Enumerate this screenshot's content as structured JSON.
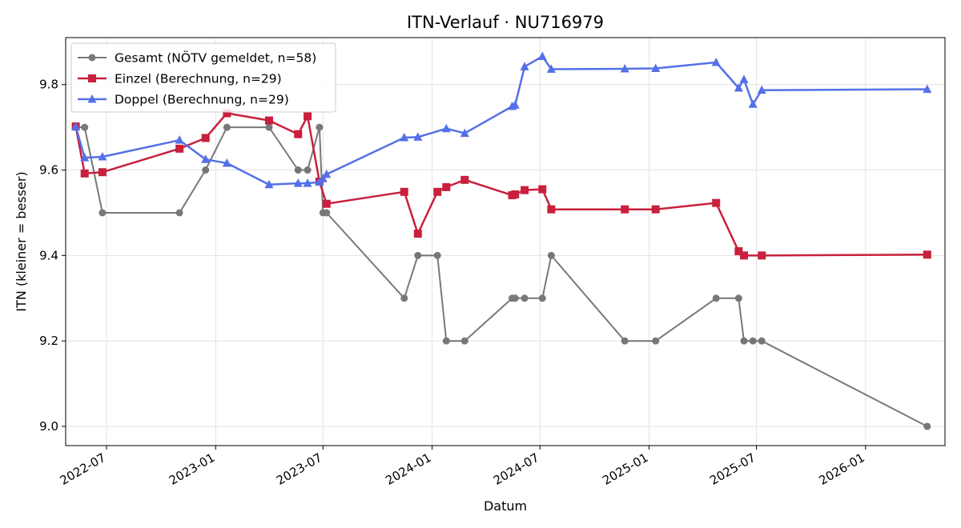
{
  "chart_data": {
    "type": "line",
    "title": "ITN-Verlauf · NU716979",
    "xlabel": "Datum",
    "ylabel": "ITN  (kleiner = besser)",
    "x_ticks": [
      "2022-07",
      "2023-01",
      "2023-07",
      "2024-01",
      "2024-07",
      "2025-01",
      "2025-07",
      "2026-01"
    ],
    "y_ticks": [
      "9.0",
      "9.2",
      "9.4",
      "9.6",
      "9.8"
    ],
    "xlim": [
      "2022-04-23",
      "2026-05-15"
    ],
    "ylim": [
      8.955,
      9.91
    ],
    "grid": true,
    "legend_position": "top-left",
    "series": [
      {
        "name": "Gesamt (NÖTV gemeldet, n=58)",
        "color": "#404040",
        "marker": "circle",
        "points": [
          [
            "2022-05-10",
            9.7
          ],
          [
            "2022-05-25",
            9.7
          ],
          [
            "2022-06-24",
            9.5
          ],
          [
            "2022-11-01",
            9.5
          ],
          [
            "2022-12-15",
            9.6
          ],
          [
            "2023-01-20",
            9.7
          ],
          [
            "2023-04-01",
            9.7
          ],
          [
            "2023-05-20",
            9.6
          ],
          [
            "2023-06-05",
            9.6
          ],
          [
            "2023-06-25",
            9.7
          ],
          [
            "2023-07-01",
            9.5
          ],
          [
            "2023-07-07",
            9.5
          ],
          [
            "2023-11-15",
            9.3
          ],
          [
            "2023-12-08",
            9.4
          ],
          [
            "2024-01-10",
            9.4
          ],
          [
            "2024-01-25",
            9.2
          ],
          [
            "2024-02-25",
            9.2
          ],
          [
            "2024-05-15",
            9.3
          ],
          [
            "2024-05-20",
            9.3
          ],
          [
            "2024-06-05",
            9.3
          ],
          [
            "2024-07-05",
            9.3
          ],
          [
            "2024-07-20",
            9.4
          ],
          [
            "2024-11-21",
            9.2
          ],
          [
            "2025-01-12",
            9.2
          ],
          [
            "2025-04-24",
            9.3
          ],
          [
            "2025-06-01",
            9.3
          ],
          [
            "2025-06-10",
            9.2
          ],
          [
            "2025-06-25",
            9.2
          ],
          [
            "2025-07-10",
            9.2
          ],
          [
            "2026-04-15",
            9.0
          ]
        ]
      },
      {
        "name": "Einzel (Berechnung, n=29)",
        "color": "#c8203d",
        "marker": "square",
        "points": [
          [
            "2022-05-10",
            9.702
          ],
          [
            "2022-05-25",
            9.592
          ],
          [
            "2022-06-24",
            9.595
          ],
          [
            "2022-11-01",
            9.65
          ],
          [
            "2022-12-15",
            9.675
          ],
          [
            "2023-01-20",
            9.733
          ],
          [
            "2023-04-01",
            9.716
          ],
          [
            "2023-05-20",
            9.684
          ],
          [
            "2023-06-05",
            9.726
          ],
          [
            "2023-06-25",
            9.573
          ],
          [
            "2023-07-07",
            9.521
          ],
          [
            "2023-11-15",
            9.549
          ],
          [
            "2023-12-08",
            9.451
          ],
          [
            "2024-01-10",
            9.549
          ],
          [
            "2024-01-25",
            9.56
          ],
          [
            "2024-02-25",
            9.577
          ],
          [
            "2024-05-15",
            9.541
          ],
          [
            "2024-05-20",
            9.543
          ],
          [
            "2024-06-05",
            9.553
          ],
          [
            "2024-07-05",
            9.555
          ],
          [
            "2024-07-20",
            9.508
          ],
          [
            "2024-11-21",
            9.508
          ],
          [
            "2025-01-12",
            9.508
          ],
          [
            "2025-04-24",
            9.523
          ],
          [
            "2025-06-01",
            9.41
          ],
          [
            "2025-06-10",
            9.4
          ],
          [
            "2025-07-10",
            9.4
          ],
          [
            "2026-04-15",
            9.402
          ]
        ]
      },
      {
        "name": "Doppel (Berechnung, n=29)",
        "color": "#5470e8",
        "marker": "triangle",
        "points": [
          [
            "2022-05-10",
            9.702
          ],
          [
            "2022-05-25",
            9.629
          ],
          [
            "2022-06-24",
            9.631
          ],
          [
            "2022-11-01",
            9.67
          ],
          [
            "2022-12-15",
            9.625
          ],
          [
            "2023-01-20",
            9.616
          ],
          [
            "2023-04-01",
            9.566
          ],
          [
            "2023-05-20",
            9.569
          ],
          [
            "2023-06-05",
            9.569
          ],
          [
            "2023-06-25",
            9.572
          ],
          [
            "2023-07-01",
            9.58
          ],
          [
            "2023-07-07",
            9.59
          ],
          [
            "2023-11-15",
            9.676
          ],
          [
            "2023-12-08",
            9.677
          ],
          [
            "2024-01-25",
            9.697
          ],
          [
            "2024-02-25",
            9.686
          ],
          [
            "2024-05-15",
            9.749
          ],
          [
            "2024-05-20",
            9.752
          ],
          [
            "2024-06-05",
            9.842
          ],
          [
            "2024-07-05",
            9.866
          ],
          [
            "2024-07-20",
            9.836
          ],
          [
            "2024-11-21",
            9.837
          ],
          [
            "2025-01-12",
            9.838
          ],
          [
            "2025-04-24",
            9.852
          ],
          [
            "2025-06-01",
            9.792
          ],
          [
            "2025-06-10",
            9.812
          ],
          [
            "2025-06-25",
            9.754
          ],
          [
            "2025-07-10",
            9.787
          ],
          [
            "2026-04-15",
            9.789
          ]
        ]
      }
    ]
  }
}
